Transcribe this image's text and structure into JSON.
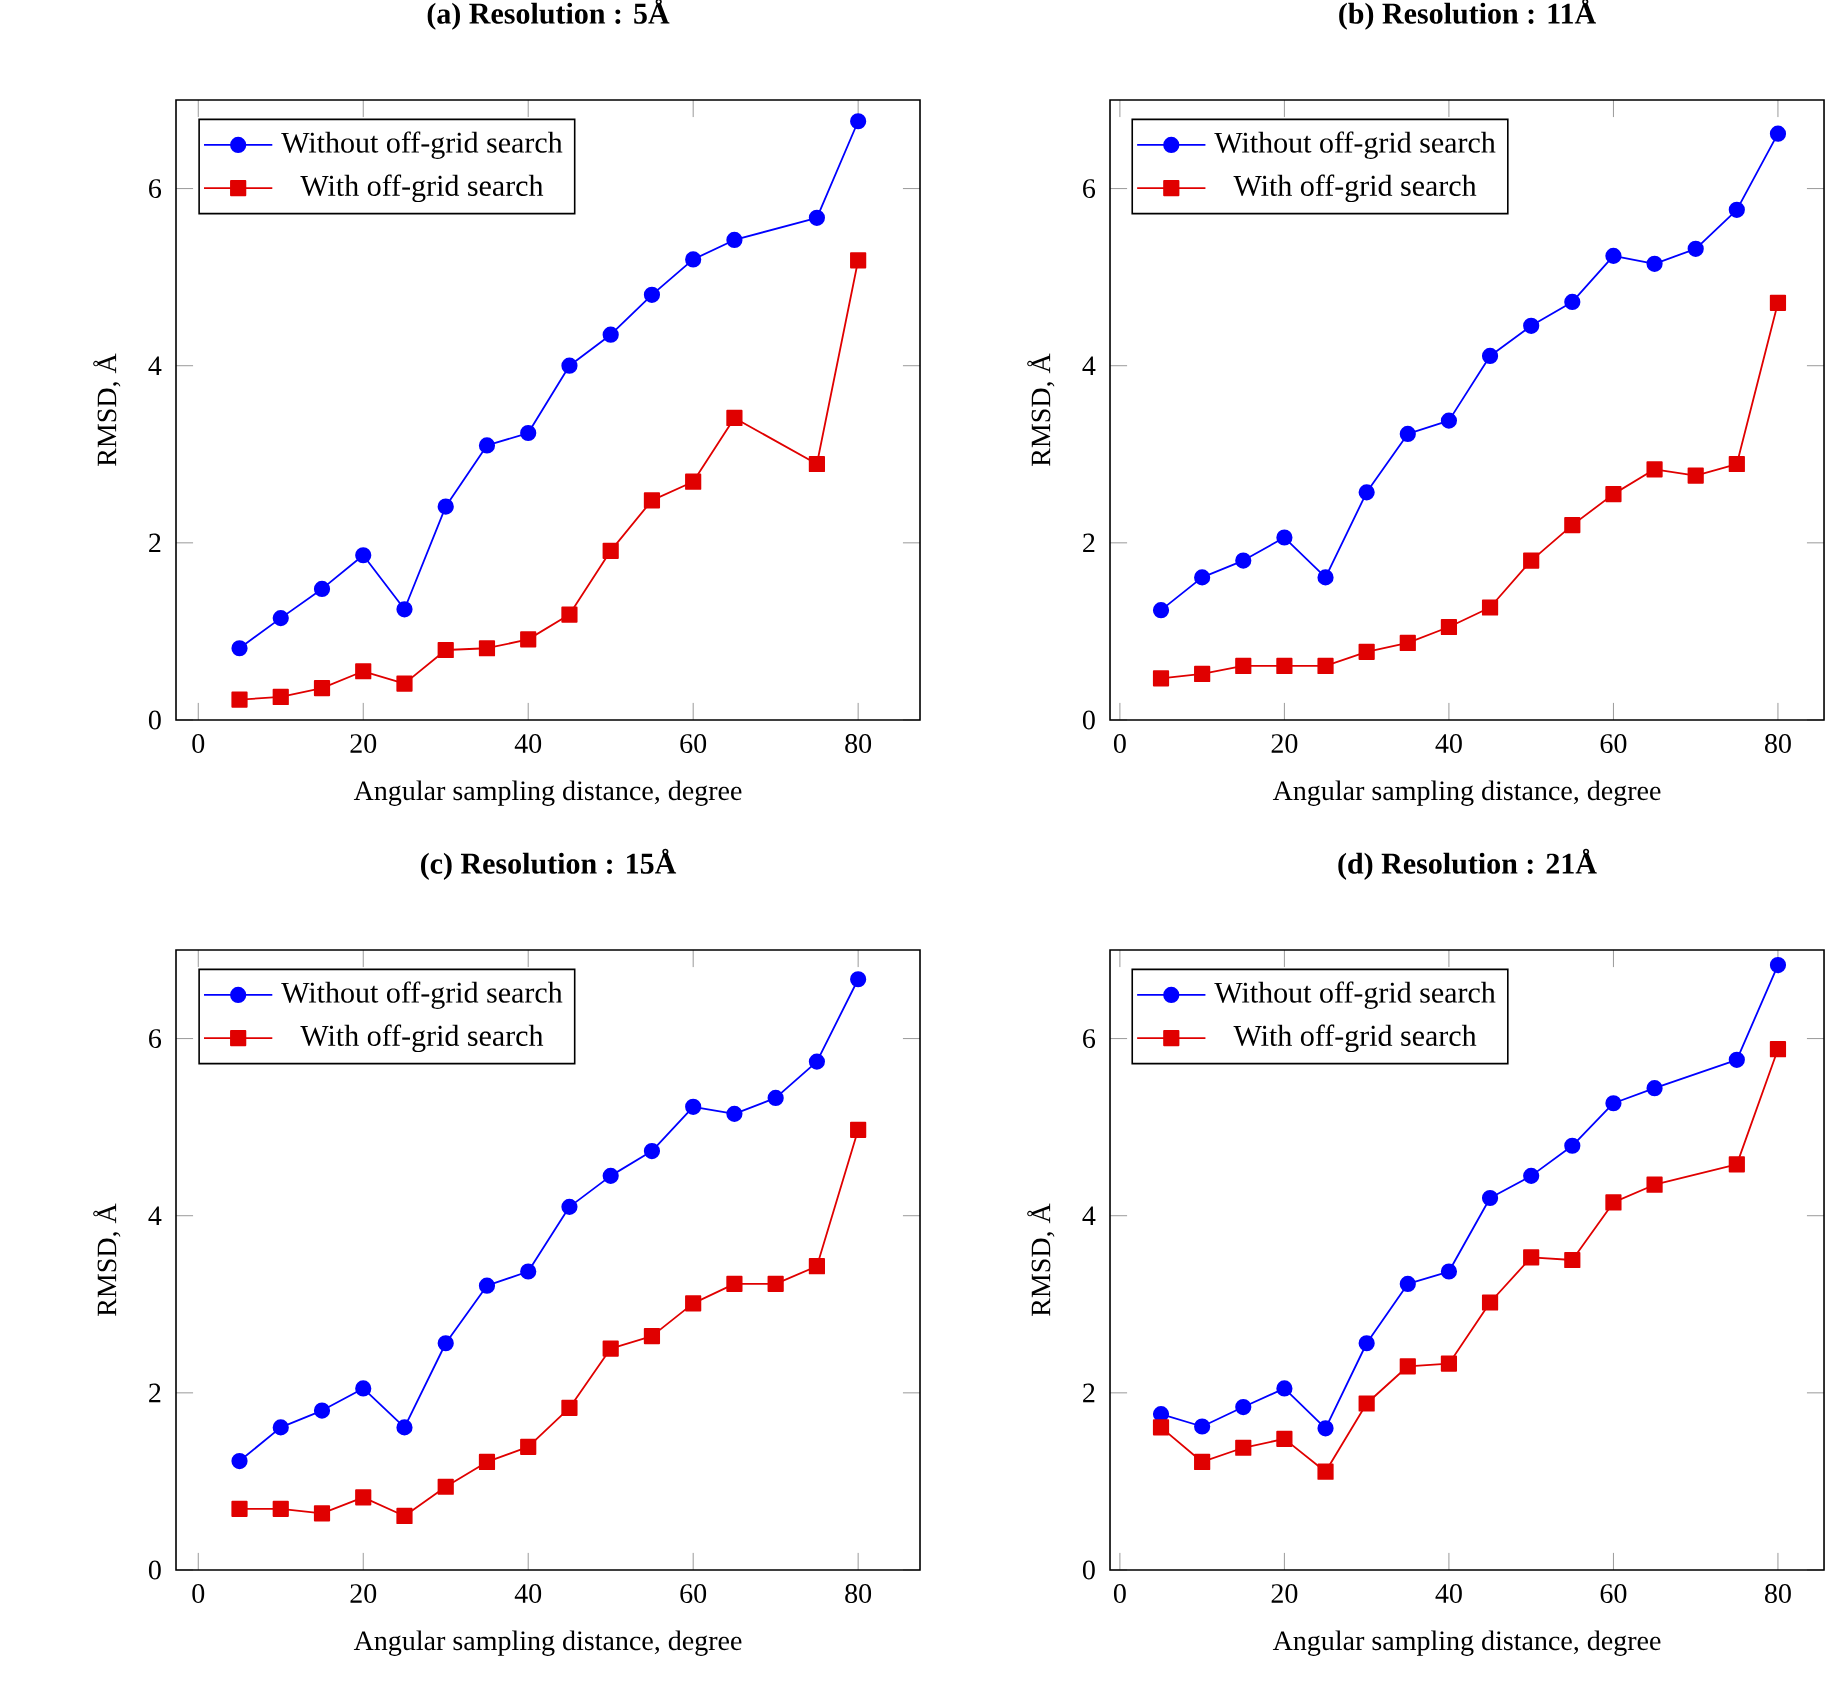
{
  "chart_data": [
    {
      "type": "line",
      "title": "(a) Resolution : 5Å",
      "xlabel": "Angular sampling distance, degree",
      "ylabel": "RMSD, Å",
      "x": [
        5,
        10,
        15,
        20,
        25,
        30,
        35,
        40,
        45,
        50,
        55,
        60,
        65,
        75,
        80
      ],
      "xlim": [
        -2.7,
        87.5
      ],
      "ylim": [
        0,
        7
      ],
      "xticks": [
        0,
        20,
        40,
        60,
        80
      ],
      "yticks": [
        0,
        2,
        4,
        6
      ],
      "legend": "top left",
      "series": [
        {
          "name": "Without off-grid search",
          "color": "#0000ff",
          "marker": "circle",
          "values": [
            0.81,
            1.15,
            1.48,
            1.86,
            1.25,
            2.41,
            3.1,
            3.24,
            4.0,
            4.35,
            4.8,
            5.2,
            5.42,
            5.67,
            6.76
          ]
        },
        {
          "name": "With off-grid search",
          "color": "#e00000",
          "marker": "square",
          "values": [
            0.23,
            0.26,
            0.36,
            0.55,
            0.41,
            0.79,
            0.81,
            0.91,
            1.19,
            1.91,
            2.48,
            2.69,
            3.41,
            2.89,
            5.19
          ]
        }
      ]
    },
    {
      "type": "line",
      "title": "(b) Resolution : 11Å",
      "xlabel": "Angular sampling distance, degree",
      "ylabel": "RMSD, Å",
      "x": [
        5,
        10,
        15,
        20,
        25,
        30,
        35,
        40,
        45,
        50,
        55,
        60,
        65,
        70,
        75,
        80
      ],
      "xlim": [
        -1.2,
        85.6
      ],
      "ylim": [
        0,
        7
      ],
      "xticks": [
        0,
        20,
        40,
        60,
        80
      ],
      "yticks": [
        0,
        2,
        4,
        6
      ],
      "legend": "top left",
      "series": [
        {
          "name": "Without off-grid search",
          "color": "#0000ff",
          "marker": "circle",
          "values": [
            1.24,
            1.61,
            1.8,
            2.06,
            1.61,
            2.57,
            3.23,
            3.38,
            4.11,
            4.45,
            4.72,
            5.24,
            5.15,
            5.32,
            5.76,
            6.62
          ]
        },
        {
          "name": "With off-grid search",
          "color": "#e00000",
          "marker": "square",
          "values": [
            0.47,
            0.52,
            0.61,
            0.61,
            0.61,
            0.77,
            0.87,
            1.05,
            1.27,
            1.8,
            2.2,
            2.55,
            2.83,
            2.76,
            2.89,
            4.71
          ]
        }
      ]
    },
    {
      "type": "line",
      "title": "(c) Resolution : 15Å",
      "xlabel": "Angular sampling distance, degree",
      "ylabel": "RMSD, Å",
      "x": [
        5,
        10,
        15,
        20,
        25,
        30,
        35,
        40,
        45,
        50,
        55,
        60,
        65,
        70,
        75,
        80
      ],
      "xlim": [
        -2.7,
        87.5
      ],
      "ylim": [
        0,
        7
      ],
      "xticks": [
        0,
        20,
        40,
        60,
        80
      ],
      "yticks": [
        0,
        2,
        4,
        6
      ],
      "legend": "top left",
      "series": [
        {
          "name": "Without off-grid search",
          "color": "#0000ff",
          "marker": "circle",
          "values": [
            1.23,
            1.61,
            1.8,
            2.05,
            1.61,
            2.56,
            3.21,
            3.37,
            4.1,
            4.45,
            4.73,
            5.23,
            5.15,
            5.33,
            5.74,
            6.67
          ]
        },
        {
          "name": "With off-grid search",
          "color": "#e00000",
          "marker": "square",
          "values": [
            0.69,
            0.69,
            0.64,
            0.82,
            0.61,
            0.94,
            1.22,
            1.39,
            1.83,
            2.5,
            2.64,
            3.01,
            3.23,
            3.23,
            3.43,
            4.97
          ]
        }
      ]
    },
    {
      "type": "line",
      "title": "(d) Resolution : 21Å",
      "xlabel": "Angular sampling distance, degree",
      "ylabel": "RMSD, Å",
      "x": [
        5,
        10,
        15,
        20,
        25,
        30,
        35,
        40,
        45,
        50,
        55,
        60,
        65,
        75,
        80
      ],
      "xlim": [
        -1.2,
        85.6
      ],
      "ylim": [
        0,
        7
      ],
      "xticks": [
        0,
        20,
        40,
        60,
        80
      ],
      "yticks": [
        0,
        2,
        4,
        6
      ],
      "legend": "top left",
      "series": [
        {
          "name": "Without off-grid search",
          "color": "#0000ff",
          "marker": "circle",
          "values": [
            1.76,
            1.62,
            1.84,
            2.05,
            1.6,
            2.56,
            3.23,
            3.37,
            4.2,
            4.45,
            4.79,
            5.27,
            5.44,
            5.76,
            6.83
          ]
        },
        {
          "name": "With off-grid search",
          "color": "#e00000",
          "marker": "square",
          "values": [
            1.61,
            1.22,
            1.38,
            1.48,
            1.11,
            1.88,
            2.3,
            2.33,
            3.02,
            3.53,
            3.5,
            4.15,
            4.35,
            4.58,
            5.88
          ]
        }
      ]
    }
  ]
}
